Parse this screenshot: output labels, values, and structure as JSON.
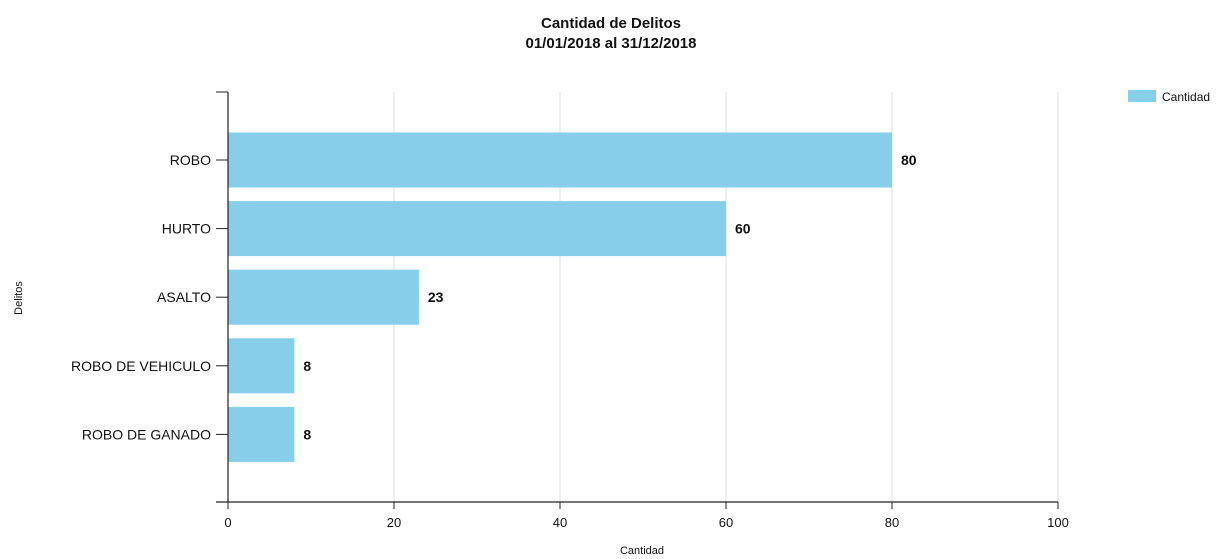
{
  "chart_data": {
    "type": "bar",
    "orientation": "horizontal",
    "title": "Cantidad de Delitos",
    "subtitle": "01/01/2018 al 31/12/2018",
    "xlabel": "Cantidad",
    "ylabel": "Delitos",
    "categories": [
      "ROBO",
      "HURTO",
      "ASALTO",
      "ROBO DE VEHICULO",
      "ROBO DE GANADO"
    ],
    "series": [
      {
        "name": "Cantidad",
        "values": [
          80,
          60,
          23,
          8,
          8
        ],
        "color": "#87ceeb"
      }
    ],
    "xlim": [
      0,
      100
    ],
    "xticks": [
      0,
      20,
      40,
      60,
      80,
      100
    ],
    "grid": "vertical",
    "legend_position": "top-right",
    "data_labels": true
  }
}
